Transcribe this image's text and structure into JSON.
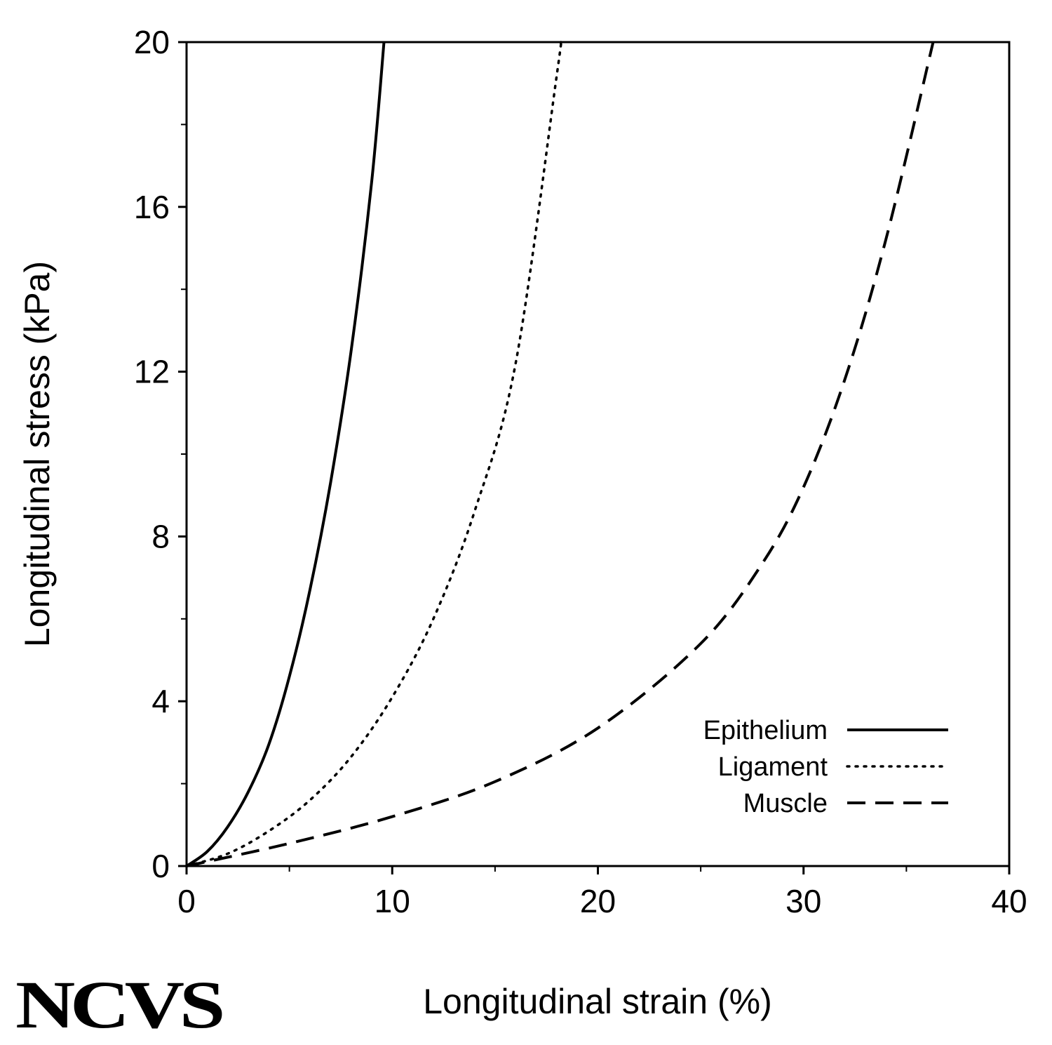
{
  "chart_data": {
    "type": "line",
    "title": "",
    "xlabel": "Longitudinal strain (%)",
    "ylabel": "Longitudinal stress (kPa)",
    "xlim": [
      0,
      40
    ],
    "ylim": [
      0,
      20
    ],
    "xticks": [
      "0",
      "10",
      "20",
      "30",
      "40"
    ],
    "yticks": [
      "0",
      "4",
      "8",
      "12",
      "16",
      "20"
    ],
    "grid": false,
    "legend_position": "bottom-right",
    "series": [
      {
        "name": "Epithelium",
        "style": "solid",
        "x": [
          0,
          1,
          2,
          3,
          4,
          5,
          6,
          7,
          8,
          9,
          9.6
        ],
        "y": [
          0,
          0.35,
          0.95,
          1.8,
          2.95,
          4.6,
          6.7,
          9.3,
          12.5,
          16.6,
          20
        ]
      },
      {
        "name": "Ligament",
        "style": "dotted",
        "x": [
          0,
          2,
          4,
          6,
          8,
          10,
          12,
          14,
          16,
          18,
          18.2
        ],
        "y": [
          0,
          0.3,
          0.85,
          1.6,
          2.65,
          4.1,
          6.0,
          8.6,
          12.2,
          19.2,
          20
        ]
      },
      {
        "name": "Muscle",
        "style": "dashed",
        "x": [
          0,
          5,
          10,
          15,
          20,
          25,
          28,
          30,
          32,
          34,
          36.3
        ],
        "y": [
          0,
          0.55,
          1.2,
          2.05,
          3.35,
          5.4,
          7.35,
          9.2,
          11.8,
          15.2,
          20
        ]
      }
    ]
  },
  "logo": {
    "text": "NCVS"
  },
  "colors": {
    "ink": "#000000",
    "background": "#ffffff"
  }
}
